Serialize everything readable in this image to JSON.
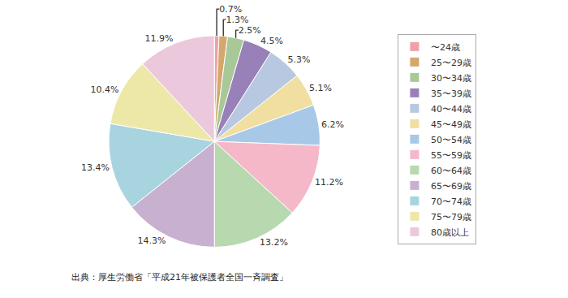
{
  "chart_data": {
    "type": "pie",
    "categories": [
      "〜24歳",
      "25〜29歳",
      "30〜34歳",
      "35〜39歳",
      "40〜44歳",
      "45〜49歳",
      "50〜54歳",
      "55〜59歳",
      "60〜64歳",
      "65〜69歳",
      "70〜74歳",
      "75〜79歳",
      "80歳以上"
    ],
    "values": [
      0.7,
      1.3,
      2.5,
      4.5,
      5.3,
      5.1,
      6.2,
      11.2,
      13.2,
      14.3,
      13.4,
      10.4,
      11.9
    ],
    "value_labels": [
      "0.7%",
      "1.3%",
      "2.5%",
      "4.5%",
      "5.3%",
      "5.1%",
      "6.2%",
      "11.2%",
      "13.2%",
      "14.3%",
      "13.4%",
      "10.4%",
      "11.9%"
    ],
    "colors": [
      "#F0A0A8",
      "#D4A86C",
      "#A8C898",
      "#9880B8",
      "#B8C8E0",
      "#F0DFA0",
      "#A8C8E8",
      "#F5B8C8",
      "#B8D8B0",
      "#C8B0D0",
      "#A8D4E0",
      "#EDE8A8",
      "#ECC8DC"
    ],
    "data_labels": true,
    "legend": "right",
    "annotations": [
      "出典：厚生労働省「平成21年被保護者全国一斉調査」"
    ]
  }
}
